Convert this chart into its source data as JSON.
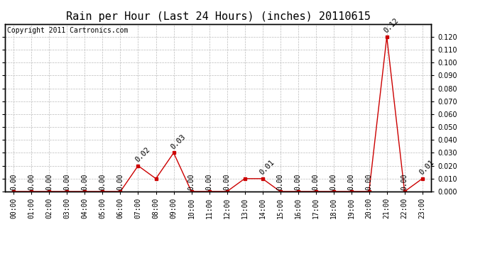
{
  "title": "Rain per Hour (Last 24 Hours) (inches) 20110615",
  "copyright_text": "Copyright 2011 Cartronics.com",
  "hours": [
    "00:00",
    "01:00",
    "02:00",
    "03:00",
    "04:00",
    "05:00",
    "06:00",
    "07:00",
    "08:00",
    "09:00",
    "10:00",
    "11:00",
    "12:00",
    "13:00",
    "14:00",
    "15:00",
    "16:00",
    "17:00",
    "18:00",
    "19:00",
    "20:00",
    "21:00",
    "22:00",
    "23:00"
  ],
  "values": [
    0.0,
    0.0,
    0.0,
    0.0,
    0.0,
    0.0,
    0.0,
    0.02,
    0.01,
    0.03,
    0.0,
    0.0,
    0.0,
    0.01,
    0.01,
    0.0,
    0.0,
    0.0,
    0.0,
    0.0,
    0.0,
    0.12,
    0.0,
    0.01
  ],
  "line_color": "#cc0000",
  "marker_color": "#cc0000",
  "background_color": "#ffffff",
  "grid_color": "#bbbbbb",
  "ylim_min": 0.0,
  "ylim_max": 0.13,
  "yticks": [
    0.0,
    0.01,
    0.02,
    0.03,
    0.04,
    0.05,
    0.06,
    0.07,
    0.08,
    0.09,
    0.1,
    0.11,
    0.12
  ],
  "peak_annotations": {
    "7": "0.02",
    "9": "0.03",
    "14": "0.01",
    "21": "0.12",
    "23": "0.01"
  },
  "title_fontsize": 11,
  "tick_fontsize": 7,
  "annotation_fontsize": 7.5,
  "copyright_fontsize": 7
}
